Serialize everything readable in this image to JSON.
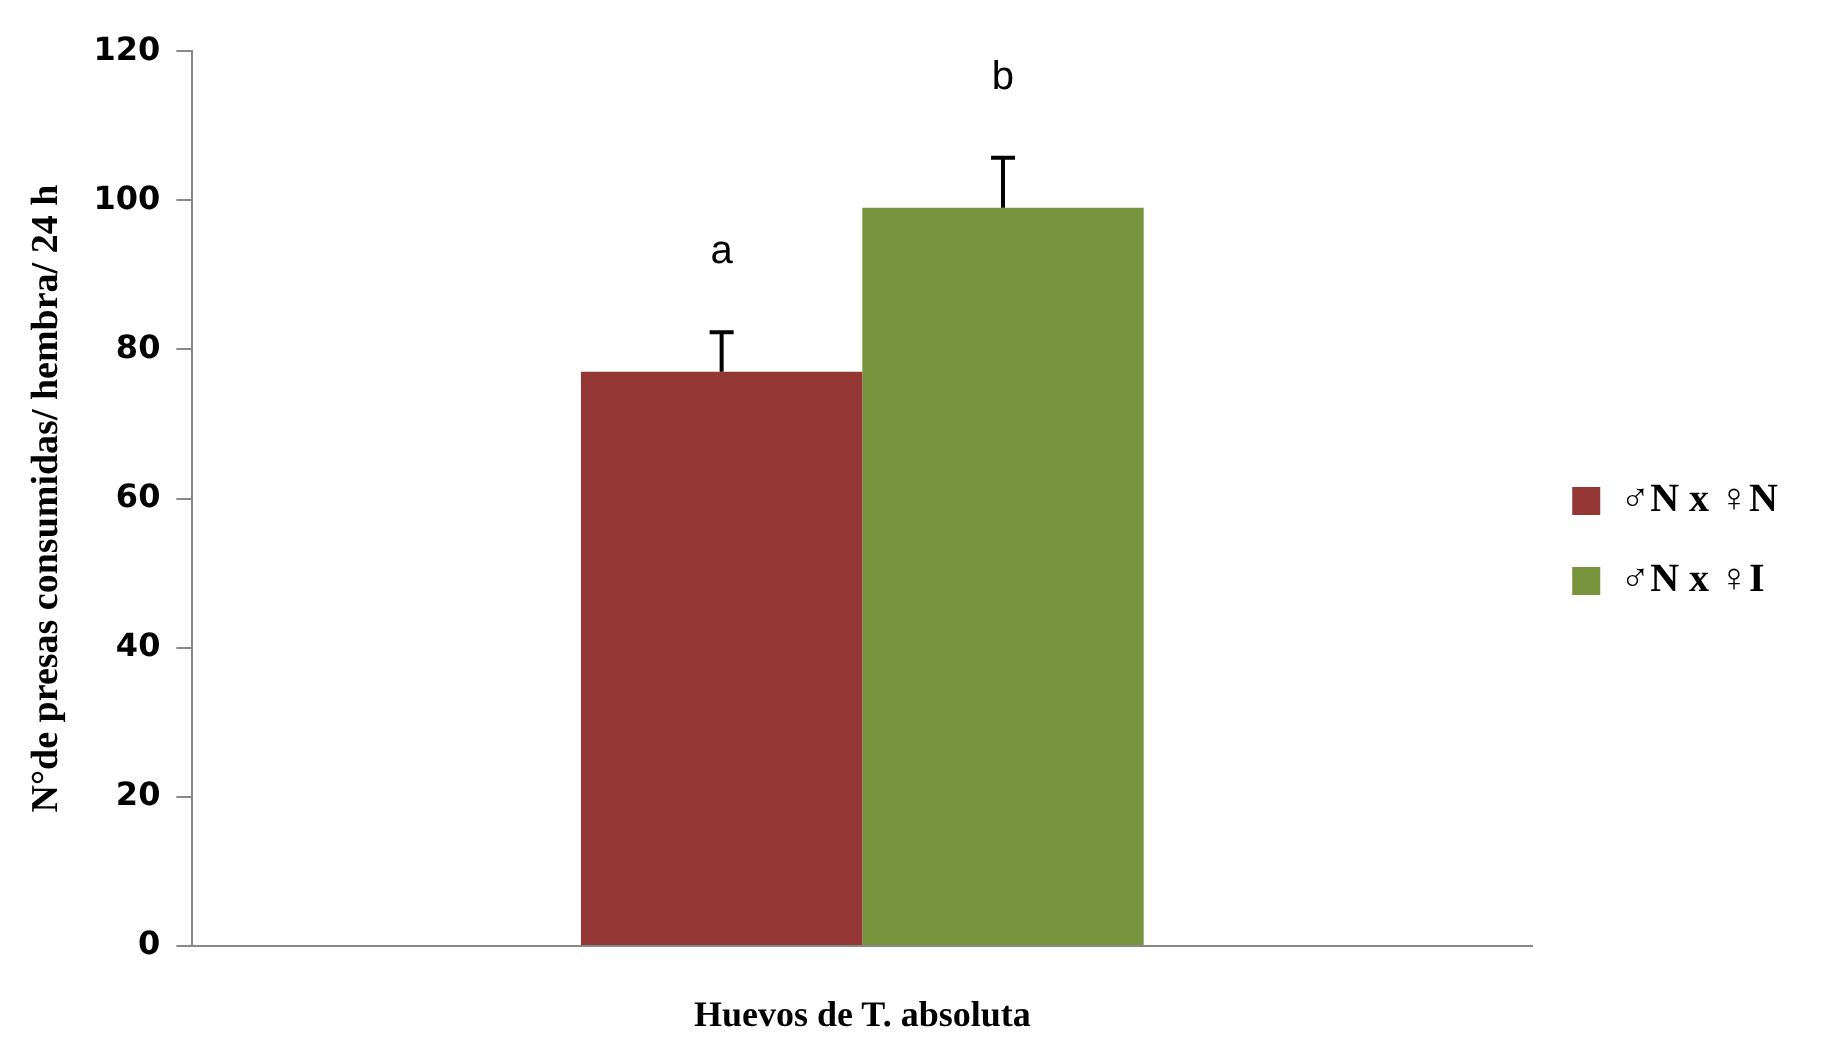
{
  "chart_data": {
    "type": "bar",
    "xlabel": "Huevos de T. absoluta",
    "ylabel": "N°de presas consumidas/ hembra/ 24 h",
    "categories": [
      null
    ],
    "series": [
      {
        "name": "♂N x ♀N",
        "color": "#943634",
        "values": [
          77
        ],
        "errors": [
          [
            77,
            82.3
          ]
        ]
      },
      {
        "name": "♂N x ♀I",
        "color": "#77933c",
        "values": [
          99
        ],
        "errors": [
          [
            99,
            105.7
          ]
        ]
      }
    ],
    "ylim": [
      0,
      120
    ],
    "yticks": [
      0,
      20,
      40,
      60,
      80,
      100,
      120
    ],
    "grid": false,
    "legend": "right",
    "annotations": [
      "a",
      "b"
    ]
  }
}
